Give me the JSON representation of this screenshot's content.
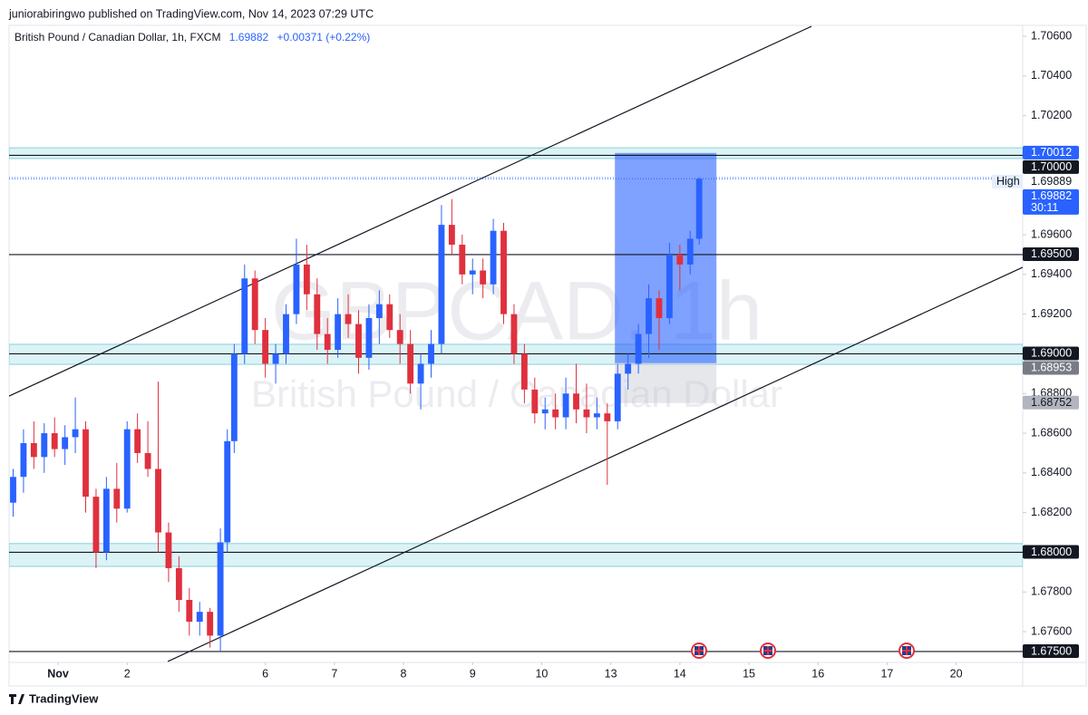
{
  "header": {
    "publisher": "juniorabiringwo published on TradingView.com, Nov 14, 2023 07:29 UTC"
  },
  "footer": {
    "brand": "TradingView"
  },
  "chart_data": {
    "type": "candlestick",
    "symbol": "British Pound / Canadian Dollar, 1h, FXCM",
    "change": "+0.00371 (+0.22%)",
    "watermark": "GBPCAD, 1h",
    "watermark_subtitle": "British Pound / Canadian Dollar",
    "up_color": "#2962ff",
    "down_color": "#e0303e",
    "xlim": [
      -0.709,
      13.963
    ],
    "ylim": [
      1.67445,
      1.70655
    ],
    "xticks": [
      {
        "value": 0,
        "label": "Nov"
      },
      {
        "value": 1,
        "label": "2"
      },
      {
        "value": 3,
        "label": "6"
      },
      {
        "value": 4,
        "label": "7"
      },
      {
        "value": 5,
        "label": "8"
      },
      {
        "value": 6,
        "label": "9"
      },
      {
        "value": 7,
        "label": "10"
      },
      {
        "value": 8,
        "label": "13"
      },
      {
        "value": 9,
        "label": "14"
      },
      {
        "value": 10,
        "label": "15"
      },
      {
        "value": 11,
        "label": "16"
      },
      {
        "value": 12,
        "label": "17"
      },
      {
        "value": 13,
        "label": "20"
      }
    ],
    "yticks": [
      {
        "value": 1.676,
        "label": "1.67600"
      },
      {
        "value": 1.678,
        "label": "1.67800"
      },
      {
        "value": 1.68,
        "label": "1.68000"
      },
      {
        "value": 1.682,
        "label": "1.68200"
      },
      {
        "value": 1.684,
        "label": "1.68400"
      },
      {
        "value": 1.686,
        "label": "1.68600"
      },
      {
        "value": 1.688,
        "label": "1.68800"
      },
      {
        "value": 1.69,
        "label": "1.69000"
      },
      {
        "value": 1.692,
        "label": "1.69200"
      },
      {
        "value": 1.694,
        "label": "1.69400"
      },
      {
        "value": 1.696,
        "label": "1.69600"
      },
      {
        "value": 1.698,
        "label": "1.69800"
      },
      {
        "value": 1.7,
        "label": "1.70000"
      },
      {
        "value": 1.702,
        "label": "1.70200"
      },
      {
        "value": 1.704,
        "label": "1.70400"
      },
      {
        "value": 1.706,
        "label": "1.70600"
      }
    ],
    "x": [
      -0.65,
      -0.5,
      -0.35,
      -0.2,
      -0.05,
      0.1,
      0.25,
      0.4,
      0.55,
      0.7,
      0.85,
      1.0,
      1.15,
      1.3,
      1.45,
      1.6,
      1.75,
      1.9,
      2.05,
      2.2,
      2.35,
      2.45,
      2.55,
      2.7,
      2.85,
      3.0,
      3.15,
      3.3,
      3.45,
      3.6,
      3.75,
      3.9,
      4.05,
      4.2,
      4.35,
      4.5,
      4.65,
      4.8,
      4.95,
      5.1,
      5.25,
      5.4,
      5.55,
      5.7,
      5.85,
      6.0,
      6.15,
      6.3,
      6.45,
      6.6,
      6.75,
      6.9,
      7.05,
      7.2,
      7.35,
      7.5,
      7.65,
      7.8,
      7.95,
      8.1,
      8.25,
      8.4,
      8.55,
      8.7,
      8.85,
      9.0,
      9.15,
      9.28
    ],
    "open": [
      1.6825,
      1.6838,
      1.6855,
      1.6848,
      1.686,
      1.6852,
      1.6858,
      1.6862,
      1.6828,
      1.68,
      1.6832,
      1.6822,
      1.6862,
      1.685,
      1.6842,
      1.681,
      1.6792,
      1.6776,
      1.6765,
      1.677,
      1.6758,
      1.6805,
      1.6856,
      1.69,
      1.6938,
      1.6912,
      1.6895,
      1.69,
      1.692,
      1.6945,
      1.693,
      1.691,
      1.6902,
      1.692,
      1.6915,
      1.6898,
      1.6918,
      1.6925,
      1.6912,
      1.6905,
      1.6885,
      1.6895,
      1.6905,
      1.6965,
      1.6955,
      1.694,
      1.6942,
      1.6935,
      1.6962,
      1.692,
      1.69,
      1.6882,
      1.687,
      1.6872,
      1.6868,
      1.688,
      1.6872,
      1.6868,
      1.687,
      1.6866,
      1.689,
      1.6895,
      1.691,
      1.6928,
      1.6918,
      1.695,
      1.6945,
      1.6958
    ],
    "high": [
      1.6842,
      1.6862,
      1.6866,
      1.6865,
      1.6868,
      1.6864,
      1.6878,
      1.6866,
      1.6832,
      1.6838,
      1.6845,
      1.6866,
      1.687,
      1.6866,
      1.6886,
      1.6815,
      1.6798,
      1.6782,
      1.6775,
      1.6772,
      1.6812,
      1.6862,
      1.6905,
      1.6945,
      1.6942,
      1.6918,
      1.6905,
      1.6925,
      1.6958,
      1.6955,
      1.6938,
      1.6918,
      1.6928,
      1.693,
      1.6922,
      1.6925,
      1.6932,
      1.693,
      1.692,
      1.6912,
      1.69,
      1.6912,
      1.6975,
      1.6978,
      1.696,
      1.6948,
      1.6948,
      1.6968,
      1.6966,
      1.6925,
      1.6905,
      1.6888,
      1.6878,
      1.688,
      1.6888,
      1.6895,
      1.6885,
      1.6878,
      1.6875,
      1.6895,
      1.69,
      1.6915,
      1.6935,
      1.6932,
      1.6956,
      1.6955,
      1.6962,
      1.69889
    ],
    "low": [
      1.6818,
      1.683,
      1.6842,
      1.684,
      1.6848,
      1.6844,
      1.685,
      1.682,
      1.6792,
      1.6796,
      1.6815,
      1.682,
      1.6845,
      1.6838,
      1.68,
      1.6785,
      1.677,
      1.6758,
      1.6758,
      1.6752,
      1.675,
      1.68,
      1.685,
      1.6895,
      1.6905,
      1.6888,
      1.6885,
      1.6895,
      1.6915,
      1.6922,
      1.6902,
      1.6895,
      1.6898,
      1.6908,
      1.689,
      1.6892,
      1.6905,
      1.6908,
      1.6895,
      1.688,
      1.6872,
      1.6888,
      1.69,
      1.695,
      1.6935,
      1.693,
      1.6928,
      1.693,
      1.6915,
      1.6895,
      1.6875,
      1.6865,
      1.6862,
      1.6862,
      1.6862,
      1.6865,
      1.686,
      1.6862,
      1.6834,
      1.6862,
      1.6882,
      1.689,
      1.6898,
      1.6902,
      1.6915,
      1.6932,
      1.694,
      1.6955
    ],
    "close": [
      1.6838,
      1.6855,
      1.6848,
      1.686,
      1.6852,
      1.6858,
      1.6862,
      1.6828,
      1.68,
      1.6832,
      1.6822,
      1.6862,
      1.685,
      1.6842,
      1.681,
      1.6792,
      1.6776,
      1.6765,
      1.677,
      1.6758,
      1.6805,
      1.6856,
      1.69,
      1.6938,
      1.6912,
      1.6895,
      1.69,
      1.692,
      1.6945,
      1.693,
      1.691,
      1.6902,
      1.692,
      1.6915,
      1.6898,
      1.6918,
      1.6925,
      1.6912,
      1.6905,
      1.6885,
      1.6895,
      1.6905,
      1.6965,
      1.6955,
      1.694,
      1.6942,
      1.6935,
      1.6962,
      1.692,
      1.69,
      1.6882,
      1.687,
      1.6872,
      1.6868,
      1.688,
      1.6872,
      1.6868,
      1.687,
      1.6866,
      1.689,
      1.6895,
      1.691,
      1.6928,
      1.6918,
      1.695,
      1.6945,
      1.6958,
      1.69882
    ],
    "zones": [
      {
        "low": 1.69984,
        "high": 1.70038
      },
      {
        "low": 1.68947,
        "high": 1.69048
      },
      {
        "low": 1.67929,
        "high": 1.68044
      }
    ],
    "levels": [
      {
        "value": 1.7,
        "label": "1.70000"
      },
      {
        "value": 1.695,
        "label": "1.69500"
      },
      {
        "value": 1.69,
        "label": "1.69000"
      },
      {
        "value": 1.68,
        "label": "1.68000"
      },
      {
        "value": 1.675,
        "label": "1.67500"
      }
    ],
    "trendlines": [
      {
        "x": [
          -0.709,
          10.905
        ],
        "y": [
          1.68787,
          1.7065
        ]
      },
      {
        "x": [
          1.588,
          13.963
        ],
        "y": [
          1.6745,
          1.69436
        ]
      }
    ],
    "position": {
      "x": [
        8.06,
        9.53
      ],
      "target": 1.70012,
      "entry": 1.68953,
      "stop": 1.68752
    },
    "high_marker": {
      "value": 1.69889,
      "label": "High"
    },
    "current": {
      "value": 1.69882,
      "countdown": "30:11"
    }
  }
}
